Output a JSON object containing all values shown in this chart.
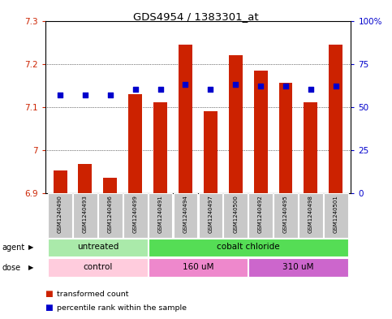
{
  "title": "GDS4954 / 1383301_at",
  "samples": [
    "GSM1240490",
    "GSM1240493",
    "GSM1240496",
    "GSM1240499",
    "GSM1240491",
    "GSM1240494",
    "GSM1240497",
    "GSM1240500",
    "GSM1240492",
    "GSM1240495",
    "GSM1240498",
    "GSM1240501"
  ],
  "red_values": [
    6.952,
    6.968,
    6.935,
    7.13,
    7.11,
    7.245,
    7.09,
    7.22,
    7.185,
    7.155,
    7.11,
    7.245
  ],
  "blue_values": [
    57,
    57,
    57,
    60,
    60,
    63,
    60,
    63,
    62,
    62,
    60,
    62
  ],
  "ylim_left": [
    6.9,
    7.3
  ],
  "ylim_right": [
    0,
    100
  ],
  "yticks_left": [
    6.9,
    7.0,
    7.1,
    7.2,
    7.3
  ],
  "yticks_right": [
    0,
    25,
    50,
    75,
    100
  ],
  "ytick_labels_left": [
    "6.9",
    "7",
    "7.1",
    "7.2",
    "7.3"
  ],
  "ytick_labels_right": [
    "0",
    "25",
    "50",
    "75",
    "100%"
  ],
  "agent_groups": [
    {
      "label": "untreated",
      "start": 0,
      "end": 4,
      "color": "#aaeaaa"
    },
    {
      "label": "cobalt chloride",
      "start": 4,
      "end": 12,
      "color": "#55dd55"
    }
  ],
  "dose_groups": [
    {
      "label": "control",
      "start": 0,
      "end": 4,
      "color": "#ffccdd"
    },
    {
      "label": "160 uM",
      "start": 4,
      "end": 8,
      "color": "#ee88cc"
    },
    {
      "label": "310 uM",
      "start": 8,
      "end": 12,
      "color": "#cc66cc"
    }
  ],
  "bar_color": "#cc2200",
  "dot_color": "#0000cc",
  "baseline": 6.9,
  "bar_width": 0.55,
  "background_color": "#ffffff",
  "grid_color": "#000000",
  "title_fontsize": 9.5,
  "tick_fontsize": 7.5,
  "left_tick_color": "#cc2200",
  "right_tick_color": "#0000cc",
  "sample_fontsize": 5.0,
  "label_row_fontsize": 7.5,
  "n_samples": 12
}
